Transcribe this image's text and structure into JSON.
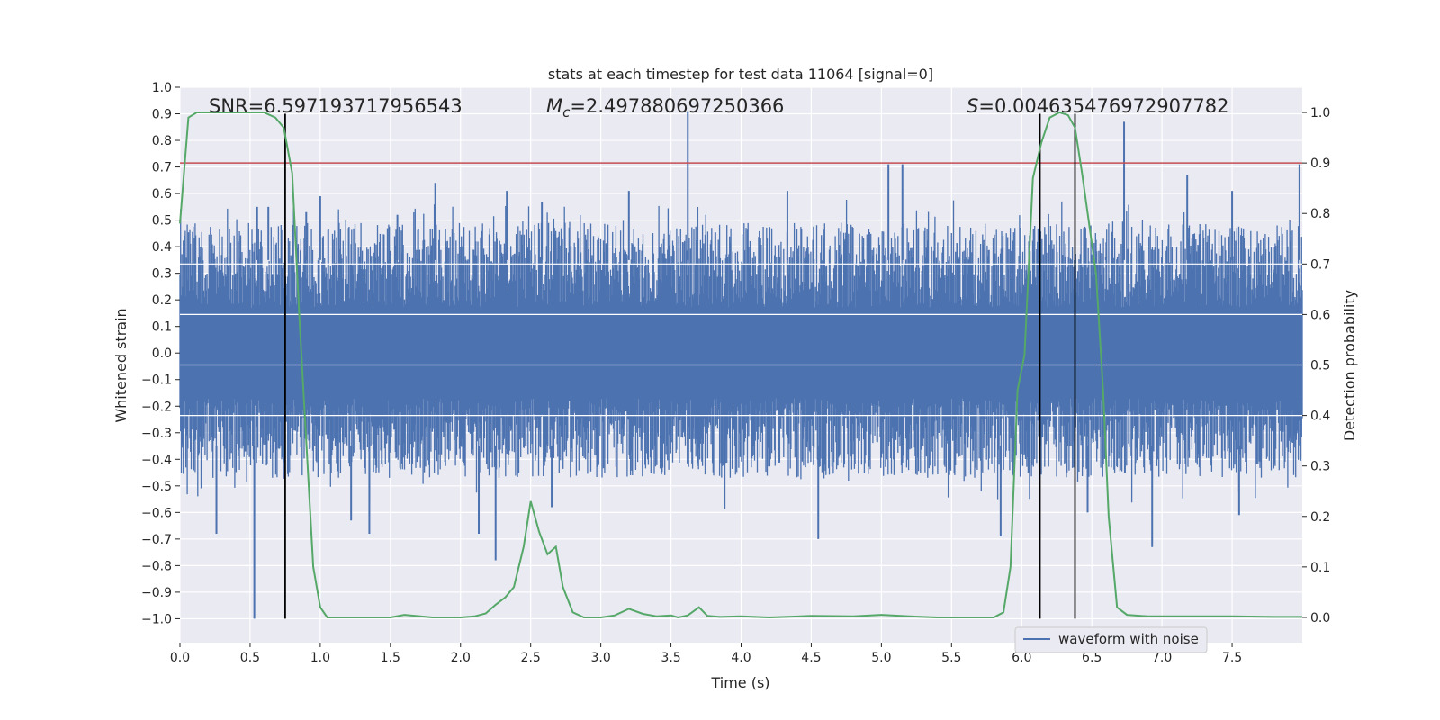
{
  "chart_data": {
    "type": "line",
    "title": "stats at each timestep for test data 11064 [signal=0]",
    "xlabel": "Time (s)",
    "ylabel_left": "Whitened strain",
    "ylabel_right": "Detection probability",
    "xlim": [
      0,
      8.0
    ],
    "ylim_left": [
      -1.09,
      1.0
    ],
    "ylim_right": [
      -0.05,
      1.05
    ],
    "x_ticks": [
      0.0,
      0.5,
      1.0,
      1.5,
      2.0,
      2.5,
      3.0,
      3.5,
      4.0,
      4.5,
      5.0,
      5.5,
      6.0,
      6.5,
      7.0,
      7.5
    ],
    "x_tick_labels": [
      "0.0",
      "0.5",
      "1.0",
      "1.5",
      "2.0",
      "2.5",
      "3.0",
      "3.5",
      "4.0",
      "4.5",
      "5.0",
      "5.5",
      "6.0",
      "6.5",
      "7.0",
      "7.5"
    ],
    "y_left_ticks": [
      1.0,
      0.9,
      0.8,
      0.7,
      0.6,
      0.5,
      0.4,
      0.3,
      0.2,
      0.1,
      0.0,
      -0.1,
      -0.2,
      -0.3,
      -0.4,
      -0.5,
      -0.6,
      -0.7,
      -0.8,
      -0.9,
      -1.0
    ],
    "y_left_tick_labels": [
      "1.0",
      "0.9",
      "0.8",
      "0.7",
      "0.6",
      "0.5",
      "0.4",
      "0.3",
      "0.2",
      "0.1",
      "0.0",
      "−0.1",
      "−0.2",
      "−0.3",
      "−0.4",
      "−0.5",
      "−0.6",
      "−0.7",
      "−0.8",
      "−0.9",
      "−1.0"
    ],
    "y_right_ticks": [
      1.0,
      0.9,
      0.8,
      0.7,
      0.6,
      0.5,
      0.4,
      0.3,
      0.2,
      0.1,
      0.0
    ],
    "y_right_tick_labels": [
      "1.0",
      "0.9",
      "0.8",
      "0.7",
      "0.6",
      "0.5",
      "0.4",
      "0.3",
      "0.2",
      "0.1",
      "0.0"
    ],
    "annotations": {
      "snr": "SNR=6.597193717956543",
      "mc_symbol": "M",
      "mc_sub": "c",
      "mc_value": "=2.497880697250366",
      "s_symbol": "S",
      "s_value": "=0.004635476972907782"
    },
    "threshold_line": {
      "axis": "right",
      "value": 0.9,
      "color": "#c44e52"
    },
    "white_hlines_right": [
      0.7,
      0.6,
      0.5,
      0.4
    ],
    "vertical_markers_x": [
      0.75,
      6.13,
      6.38
    ],
    "vertical_marker_range_left": [
      -1.0,
      0.9
    ],
    "series": [
      {
        "name": "waveform with noise",
        "axis": "left",
        "color": "#4c72b0",
        "kind": "noise-band",
        "band_core": [
          -0.17,
          0.17
        ],
        "spikes_up": [
          {
            "x": 0.55,
            "y": 0.55
          },
          {
            "x": 0.63,
            "y": 0.55
          },
          {
            "x": 0.9,
            "y": 0.53
          },
          {
            "x": 1.0,
            "y": 0.59
          },
          {
            "x": 1.55,
            "y": 0.52
          },
          {
            "x": 1.82,
            "y": 0.64
          },
          {
            "x": 2.33,
            "y": 0.61
          },
          {
            "x": 2.58,
            "y": 0.57
          },
          {
            "x": 3.2,
            "y": 0.61
          },
          {
            "x": 3.62,
            "y": 0.91
          },
          {
            "x": 4.33,
            "y": 0.61
          },
          {
            "x": 5.05,
            "y": 0.71
          },
          {
            "x": 5.15,
            "y": 0.71
          },
          {
            "x": 6.6,
            "y": 0.36
          },
          {
            "x": 6.73,
            "y": 0.87
          },
          {
            "x": 7.18,
            "y": 0.67
          },
          {
            "x": 7.5,
            "y": 0.61
          },
          {
            "x": 7.98,
            "y": 0.71
          }
        ],
        "spikes_down": [
          {
            "x": 0.26,
            "y": -0.68
          },
          {
            "x": 0.53,
            "y": -1.0
          },
          {
            "x": 1.22,
            "y": -0.63
          },
          {
            "x": 1.35,
            "y": -0.68
          },
          {
            "x": 2.13,
            "y": -0.68
          },
          {
            "x": 2.25,
            "y": -0.78
          },
          {
            "x": 2.65,
            "y": -0.58
          },
          {
            "x": 4.55,
            "y": -0.7
          },
          {
            "x": 5.85,
            "y": -0.69
          },
          {
            "x": 6.47,
            "y": -0.6
          },
          {
            "x": 6.93,
            "y": -0.73
          },
          {
            "x": 7.55,
            "y": -0.61
          }
        ]
      },
      {
        "name": "detection probability",
        "axis": "right",
        "color": "#55a868",
        "x": [
          0.0,
          0.06,
          0.12,
          0.18,
          0.3,
          0.45,
          0.6,
          0.68,
          0.74,
          0.8,
          0.85,
          0.95,
          1.0,
          1.05,
          1.3,
          1.5,
          1.6,
          1.8,
          2.0,
          2.1,
          2.18,
          2.25,
          2.32,
          2.38,
          2.45,
          2.5,
          2.56,
          2.62,
          2.68,
          2.73,
          2.8,
          2.88,
          3.0,
          3.1,
          3.2,
          3.3,
          3.4,
          3.5,
          3.55,
          3.62,
          3.7,
          3.76,
          3.85,
          4.0,
          4.2,
          4.5,
          4.8,
          5.0,
          5.2,
          5.4,
          5.6,
          5.8,
          5.87,
          5.92,
          5.97,
          6.02,
          6.08,
          6.14,
          6.2,
          6.27,
          6.33,
          6.38,
          6.43,
          6.48,
          6.53,
          6.58,
          6.62,
          6.68,
          6.75,
          6.9,
          7.2,
          7.5,
          7.8,
          8.0
        ],
        "y": [
          0.78,
          0.99,
          1.0,
          1.0,
          1.0,
          1.0,
          1.0,
          0.99,
          0.97,
          0.88,
          0.6,
          0.1,
          0.02,
          0.0,
          0.0,
          0.0,
          0.005,
          0.0,
          0.0,
          0.002,
          0.008,
          0.025,
          0.04,
          0.06,
          0.14,
          0.23,
          0.17,
          0.125,
          0.14,
          0.06,
          0.01,
          0.0,
          0.0,
          0.004,
          0.017,
          0.007,
          0.002,
          0.004,
          0.0,
          0.004,
          0.02,
          0.003,
          0.001,
          0.002,
          0.0,
          0.003,
          0.002,
          0.005,
          0.002,
          0.0,
          0.0,
          0.0,
          0.01,
          0.1,
          0.45,
          0.52,
          0.87,
          0.94,
          0.99,
          1.0,
          0.995,
          0.97,
          0.88,
          0.78,
          0.68,
          0.45,
          0.2,
          0.02,
          0.005,
          0.002,
          0.002,
          0.002,
          0.001,
          0.001
        ]
      }
    ],
    "legend": {
      "position": "lower-right",
      "entries": [
        {
          "label": "waveform with noise",
          "color": "#4c72b0"
        }
      ]
    },
    "colors": {
      "plot_bg": "#eaeaf2",
      "grid": "#ffffff",
      "noise": "#4c72b0",
      "probability": "#55a868",
      "threshold": "#c44e52",
      "markers": "#000000"
    }
  }
}
